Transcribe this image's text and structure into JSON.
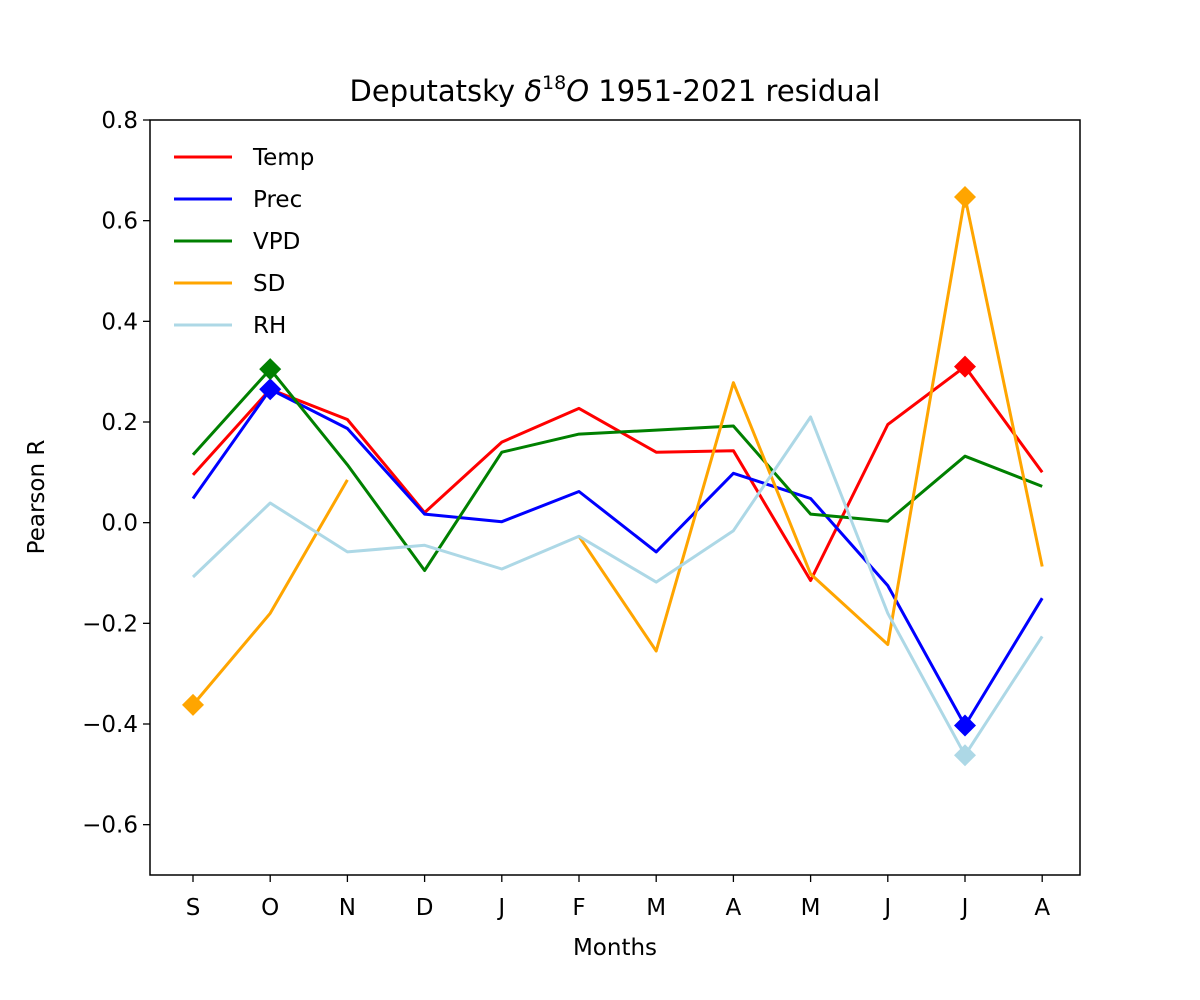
{
  "chart_data": {
    "type": "line",
    "title_prefix": "Deputatsky ",
    "title_delta": "δ",
    "title_sup": "18",
    "title_O": "O",
    "title_suffix": " 1951-2021 residual",
    "xlabel": "Months",
    "ylabel": "Pearson R",
    "categories": [
      "S",
      "O",
      "N",
      "D",
      "J",
      "F",
      "M",
      "A",
      "M",
      "J",
      "J",
      "A"
    ],
    "ylim": [
      -0.7,
      0.8
    ],
    "yticks": [
      -0.6,
      -0.4,
      -0.2,
      0.0,
      0.2,
      0.4,
      0.6,
      0.8
    ],
    "ytick_labels": [
      "−0.6",
      "−0.4",
      "−0.2",
      "0.0",
      "0.2",
      "0.4",
      "0.6",
      "0.8"
    ],
    "grid": false,
    "legend_position": "upper-left",
    "series": [
      {
        "name": "Temp",
        "color": "#ff0000",
        "values": [
          0.095,
          0.265,
          0.205,
          0.02,
          0.16,
          0.227,
          0.14,
          0.143,
          -0.115,
          0.195,
          0.31,
          0.1
        ],
        "markers": [
          10
        ]
      },
      {
        "name": "Prec",
        "color": "#0000ff",
        "values": [
          0.048,
          0.265,
          0.187,
          0.017,
          0.002,
          0.062,
          -0.058,
          0.098,
          0.048,
          -0.125,
          -0.403,
          -0.15
        ],
        "markers": [
          1,
          10
        ]
      },
      {
        "name": "VPD",
        "color": "#008000",
        "values": [
          0.135,
          0.305,
          0.115,
          -0.095,
          0.14,
          0.176,
          0.184,
          0.192,
          0.017,
          0.003,
          0.132,
          0.072
        ],
        "markers": [
          1
        ]
      },
      {
        "name": "SD",
        "color": "#ffa500",
        "values": [
          -0.362,
          -0.18,
          0.085,
          null,
          null,
          -0.027,
          -0.255,
          0.278,
          -0.102,
          -0.242,
          0.647,
          -0.087
        ],
        "markers": [
          0,
          10
        ]
      },
      {
        "name": "RH",
        "color": "#add8e6",
        "values": [
          -0.108,
          0.039,
          -0.058,
          -0.045,
          -0.092,
          -0.027,
          -0.118,
          -0.016,
          0.21,
          -0.18,
          -0.462,
          -0.226
        ],
        "markers": [
          10
        ]
      }
    ]
  }
}
